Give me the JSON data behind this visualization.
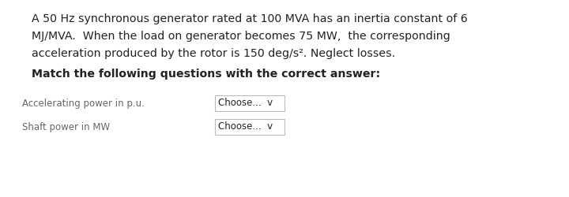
{
  "background_color": "#ffffff",
  "line1": "A 50 Hz synchronous generator rated at 100 MVA has an inertia constant of 6",
  "line2": "MJ/MVA.  When the load on generator becomes 75 MW,  the corresponding",
  "line3": "acceleration produced by the rotor is 150 deg/s². Neglect losses.",
  "bold_text": "Match the following questions with the correct answer:",
  "row1_label": "Accelerating power in p.u.",
  "row2_label": "Shaft power in MW",
  "dropdown_text": "Choose...  v",
  "text_color": "#222222",
  "label_color": "#666666",
  "box_border_color": "#bbbbbb",
  "box_bg_color": "#ffffff",
  "font_size_para": 10.2,
  "font_size_bold": 10.2,
  "font_size_label": 8.5,
  "font_size_dropdown": 8.5
}
